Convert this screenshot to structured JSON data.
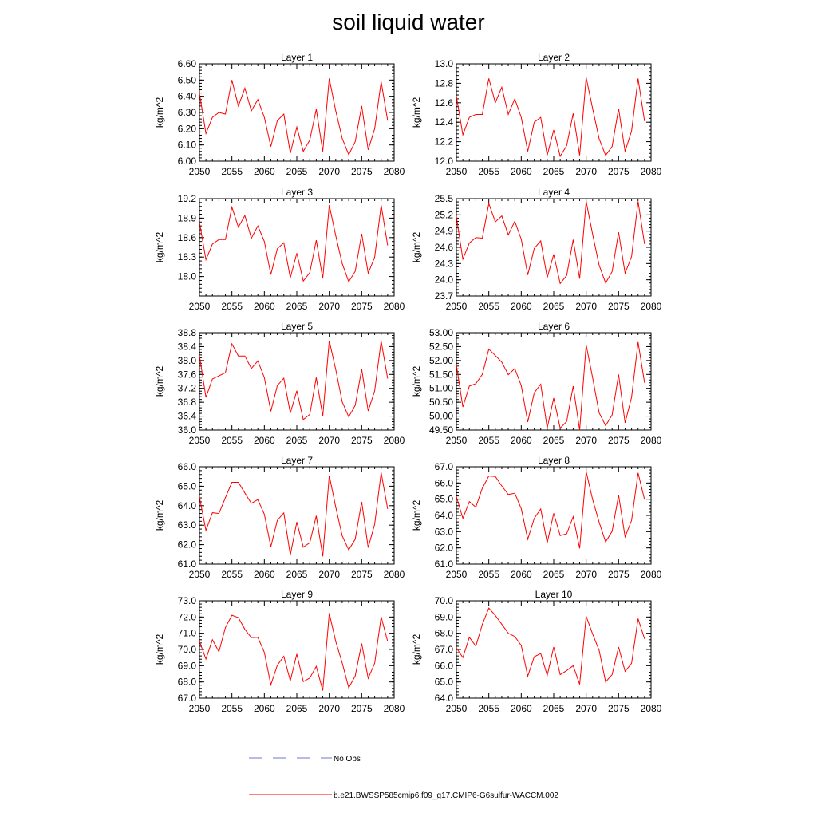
{
  "page": {
    "title": "soil liquid water"
  },
  "legend": {
    "entries": [
      {
        "label": "No Obs",
        "color": "#6f79c8",
        "style": "dashed"
      },
      {
        "label": "b.e21.BWSSP585cmip6.f09_g17.CMIP6-G6sulfur-WACCM.002",
        "color": "#ff0000",
        "style": "solid"
      }
    ]
  },
  "colors": {
    "series": "#ff0000",
    "axis": "#000000"
  },
  "chart_data": [
    {
      "type": "line",
      "title": "Layer 1",
      "xlabel": "",
      "ylabel": "kg/m^2",
      "xlim": [
        2050,
        2080
      ],
      "ylim": [
        6.0,
        6.6
      ],
      "xticks": [
        "2050",
        "2055",
        "2060",
        "2065",
        "2070",
        "2075",
        "2080"
      ],
      "yticks": [
        "6.00",
        "6.10",
        "6.20",
        "6.30",
        "6.40",
        "6.50",
        "6.60"
      ],
      "x": [
        2050,
        2051,
        2052,
        2053,
        2054,
        2055,
        2056,
        2057,
        2058,
        2059,
        2060,
        2061,
        2062,
        2063,
        2064,
        2065,
        2066,
        2067,
        2068,
        2069,
        2070,
        2071,
        2072,
        2073,
        2074,
        2075,
        2076,
        2077,
        2078,
        2079
      ],
      "series": [
        {
          "name": "b.e21.BWSSP585cmip6.f09_g17.CMIP6-G6sulfur-WACCM.002",
          "values": [
            6.42,
            6.17,
            6.27,
            6.3,
            6.29,
            6.5,
            6.34,
            6.45,
            6.31,
            6.38,
            6.27,
            6.09,
            6.25,
            6.29,
            6.05,
            6.21,
            6.06,
            6.13,
            6.32,
            6.06,
            6.51,
            6.31,
            6.14,
            6.04,
            6.12,
            6.34,
            6.07,
            6.2,
            6.49,
            6.25
          ]
        }
      ]
    },
    {
      "type": "line",
      "title": "Layer 2",
      "xlabel": "",
      "ylabel": "kg/m^2",
      "xlim": [
        2050,
        2080
      ],
      "ylim": [
        12.0,
        13.0
      ],
      "xticks": [
        "2050",
        "2055",
        "2060",
        "2065",
        "2070",
        "2075",
        "2080"
      ],
      "yticks": [
        "12.0",
        "12.2",
        "12.4",
        "12.6",
        "12.8",
        "13.0"
      ],
      "x": [
        2050,
        2051,
        2052,
        2053,
        2054,
        2055,
        2056,
        2057,
        2058,
        2059,
        2060,
        2061,
        2062,
        2063,
        2064,
        2065,
        2066,
        2067,
        2068,
        2069,
        2070,
        2071,
        2072,
        2073,
        2074,
        2075,
        2076,
        2077,
        2078,
        2079
      ],
      "series": [
        {
          "name": "b.e21.BWSSP585cmip6.f09_g17.CMIP6-G6sulfur-WACCM.002",
          "values": [
            12.67,
            12.27,
            12.45,
            12.48,
            12.48,
            12.85,
            12.6,
            12.76,
            12.48,
            12.64,
            12.45,
            12.1,
            12.4,
            12.45,
            12.06,
            12.32,
            12.05,
            12.16,
            12.49,
            12.06,
            12.86,
            12.54,
            12.23,
            12.06,
            12.15,
            12.54,
            12.1,
            12.31,
            12.85,
            12.41
          ]
        }
      ]
    },
    {
      "type": "line",
      "title": "Layer 3",
      "xlabel": "",
      "ylabel": "kg/m^2",
      "xlim": [
        2050,
        2080
      ],
      "ylim": [
        17.7,
        19.2
      ],
      "xticks": [
        "2050",
        "2055",
        "2060",
        "2065",
        "2070",
        "2075",
        "2080"
      ],
      "yticks": [
        "18.0",
        "18.3",
        "18.6",
        "18.9",
        "19.2"
      ],
      "x": [
        2050,
        2051,
        2052,
        2053,
        2054,
        2055,
        2056,
        2057,
        2058,
        2059,
        2060,
        2061,
        2062,
        2063,
        2064,
        2065,
        2066,
        2067,
        2068,
        2069,
        2070,
        2071,
        2072,
        2073,
        2074,
        2075,
        2076,
        2077,
        2078,
        2079
      ],
      "series": [
        {
          "name": "b.e21.BWSSP585cmip6.f09_g17.CMIP6-G6sulfur-WACCM.002",
          "values": [
            18.84,
            18.26,
            18.5,
            18.57,
            18.57,
            19.07,
            18.76,
            18.94,
            18.59,
            18.78,
            18.54,
            18.03,
            18.43,
            18.52,
            17.98,
            18.36,
            17.93,
            18.06,
            18.56,
            17.97,
            19.1,
            18.63,
            18.2,
            17.92,
            18.08,
            18.66,
            18.05,
            18.3,
            19.1,
            18.48
          ]
        }
      ]
    },
    {
      "type": "line",
      "title": "Layer 4",
      "xlabel": "",
      "ylabel": "kg/m^2",
      "xlim": [
        2050,
        2080
      ],
      "ylim": [
        23.7,
        25.5
      ],
      "xticks": [
        "2050",
        "2055",
        "2060",
        "2065",
        "2070",
        "2075",
        "2080"
      ],
      "yticks": [
        "23.7",
        "24.0",
        "24.3",
        "24.6",
        "24.9",
        "25.2",
        "25.5"
      ],
      "x": [
        2050,
        2051,
        2052,
        2053,
        2054,
        2055,
        2056,
        2057,
        2058,
        2059,
        2060,
        2061,
        2062,
        2063,
        2064,
        2065,
        2066,
        2067,
        2068,
        2069,
        2070,
        2071,
        2072,
        2073,
        2074,
        2075,
        2076,
        2077,
        2078,
        2079
      ],
      "series": [
        {
          "name": "b.e21.BWSSP585cmip6.f09_g17.CMIP6-G6sulfur-WACCM.002",
          "values": [
            25.17,
            24.38,
            24.68,
            24.78,
            24.77,
            25.41,
            25.07,
            25.18,
            24.83,
            25.08,
            24.75,
            24.09,
            24.58,
            24.72,
            24.04,
            24.47,
            23.93,
            24.08,
            24.74,
            24.02,
            25.45,
            24.84,
            24.27,
            23.94,
            24.15,
            24.88,
            24.12,
            24.43,
            25.45,
            24.66
          ]
        }
      ]
    },
    {
      "type": "line",
      "title": "Layer 5",
      "xlabel": "",
      "ylabel": "kg/m^2",
      "xlim": [
        2050,
        2080
      ],
      "ylim": [
        36.0,
        38.8
      ],
      "xticks": [
        "2050",
        "2055",
        "2060",
        "2065",
        "2070",
        "2075",
        "2080"
      ],
      "yticks": [
        "36.0",
        "36.4",
        "36.8",
        "37.2",
        "37.6",
        "38.0",
        "38.4",
        "38.8"
      ],
      "x": [
        2050,
        2051,
        2052,
        2053,
        2054,
        2055,
        2056,
        2057,
        2058,
        2059,
        2060,
        2061,
        2062,
        2063,
        2064,
        2065,
        2066,
        2067,
        2068,
        2069,
        2070,
        2071,
        2072,
        2073,
        2074,
        2075,
        2076,
        2077,
        2078,
        2079
      ],
      "series": [
        {
          "name": "b.e21.BWSSP585cmip6.f09_g17.CMIP6-G6sulfur-WACCM.002",
          "values": [
            38.15,
            36.94,
            37.47,
            37.56,
            37.65,
            38.48,
            38.13,
            38.13,
            37.77,
            37.99,
            37.51,
            36.54,
            37.28,
            37.49,
            36.49,
            37.13,
            36.3,
            36.45,
            37.51,
            36.4,
            38.57,
            37.74,
            36.81,
            36.38,
            36.71,
            37.75,
            36.55,
            37.13,
            38.56,
            37.48
          ]
        }
      ]
    },
    {
      "type": "line",
      "title": "Layer 6",
      "xlabel": "",
      "ylabel": "kg/m^2",
      "xlim": [
        2050,
        2080
      ],
      "ylim": [
        49.5,
        53.0
      ],
      "xticks": [
        "2050",
        "2055",
        "2060",
        "2065",
        "2070",
        "2075",
        "2080"
      ],
      "yticks": [
        "49.50",
        "50.00",
        "50.50",
        "51.00",
        "51.50",
        "52.00",
        "52.50",
        "53.00"
      ],
      "x": [
        2050,
        2051,
        2052,
        2053,
        2054,
        2055,
        2056,
        2057,
        2058,
        2059,
        2060,
        2061,
        2062,
        2063,
        2064,
        2065,
        2066,
        2067,
        2068,
        2069,
        2070,
        2071,
        2072,
        2073,
        2074,
        2075,
        2076,
        2077,
        2078,
        2079
      ],
      "series": [
        {
          "name": "b.e21.BWSSP585cmip6.f09_g17.CMIP6-G6sulfur-WACCM.002",
          "values": [
            51.85,
            50.33,
            51.08,
            51.17,
            51.5,
            52.41,
            52.18,
            51.94,
            51.49,
            51.71,
            51.1,
            49.79,
            50.84,
            51.15,
            49.57,
            50.65,
            49.57,
            49.81,
            51.08,
            49.5,
            52.56,
            51.38,
            50.12,
            49.66,
            50.04,
            51.5,
            49.76,
            50.68,
            52.66,
            51.2
          ]
        }
      ]
    },
    {
      "type": "line",
      "title": "Layer 7",
      "xlabel": "",
      "ylabel": "kg/m^2",
      "xlim": [
        2050,
        2080
      ],
      "ylim": [
        61.0,
        66.0
      ],
      "xticks": [
        "2050",
        "2055",
        "2060",
        "2065",
        "2070",
        "2075",
        "2080"
      ],
      "yticks": [
        "61.0",
        "62.0",
        "63.0",
        "64.0",
        "65.0",
        "66.0"
      ],
      "x": [
        2050,
        2051,
        2052,
        2053,
        2054,
        2055,
        2056,
        2057,
        2058,
        2059,
        2060,
        2061,
        2062,
        2063,
        2064,
        2065,
        2066,
        2067,
        2068,
        2069,
        2070,
        2071,
        2072,
        2073,
        2074,
        2075,
        2076,
        2077,
        2078,
        2079
      ],
      "series": [
        {
          "name": "b.e21.BWSSP585cmip6.f09_g17.CMIP6-G6sulfur-WACCM.002",
          "values": [
            64.45,
            62.73,
            63.64,
            63.6,
            64.41,
            65.2,
            65.2,
            64.65,
            64.12,
            64.31,
            63.56,
            61.89,
            63.25,
            63.63,
            61.47,
            63.16,
            61.87,
            62.1,
            63.48,
            61.4,
            65.55,
            63.93,
            62.45,
            61.73,
            62.28,
            64.2,
            61.85,
            63.05,
            65.7,
            63.83
          ]
        }
      ]
    },
    {
      "type": "line",
      "title": "Layer 8",
      "xlabel": "",
      "ylabel": "kg/m^2",
      "xlim": [
        2050,
        2080
      ],
      "ylim": [
        61.0,
        67.0
      ],
      "xticks": [
        "2050",
        "2055",
        "2060",
        "2065",
        "2070",
        "2075",
        "2080"
      ],
      "yticks": [
        "61.0",
        "62.0",
        "63.0",
        "64.0",
        "65.0",
        "66.0",
        "67.0"
      ],
      "x": [
        2050,
        2051,
        2052,
        2053,
        2054,
        2055,
        2056,
        2057,
        2058,
        2059,
        2060,
        2061,
        2062,
        2063,
        2064,
        2065,
        2066,
        2067,
        2068,
        2069,
        2070,
        2071,
        2072,
        2073,
        2074,
        2075,
        2076,
        2077,
        2078,
        2079
      ],
      "series": [
        {
          "name": "b.e21.BWSSP585cmip6.f09_g17.CMIP6-G6sulfur-WACCM.002",
          "values": [
            65.17,
            63.82,
            64.85,
            64.51,
            65.68,
            66.43,
            66.4,
            65.82,
            65.29,
            65.37,
            64.42,
            62.53,
            63.82,
            64.4,
            62.31,
            64.13,
            62.76,
            62.87,
            63.92,
            61.97,
            66.7,
            64.98,
            63.58,
            62.37,
            63.02,
            65.25,
            62.68,
            63.69,
            66.62,
            64.98
          ]
        }
      ]
    },
    {
      "type": "line",
      "title": "Layer 9",
      "xlabel": "",
      "ylabel": "kg/m^2",
      "xlim": [
        2050,
        2080
      ],
      "ylim": [
        67.0,
        73.0
      ],
      "xticks": [
        "2050",
        "2055",
        "2060",
        "2065",
        "2070",
        "2075",
        "2080"
      ],
      "yticks": [
        "67.0",
        "68.0",
        "69.0",
        "70.0",
        "71.0",
        "72.0",
        "73.0"
      ],
      "x": [
        2050,
        2051,
        2052,
        2053,
        2054,
        2055,
        2056,
        2057,
        2058,
        2059,
        2060,
        2061,
        2062,
        2063,
        2064,
        2065,
        2066,
        2067,
        2068,
        2069,
        2070,
        2071,
        2072,
        2073,
        2074,
        2075,
        2076,
        2077,
        2078,
        2079
      ],
      "series": [
        {
          "name": "b.e21.BWSSP585cmip6.f09_g17.CMIP6-G6sulfur-WACCM.002",
          "values": [
            70.5,
            69.41,
            70.6,
            69.86,
            71.35,
            72.11,
            71.96,
            71.24,
            70.73,
            70.75,
            69.82,
            67.82,
            69.03,
            69.58,
            68.07,
            69.72,
            68.02,
            68.24,
            68.96,
            67.47,
            72.23,
            70.49,
            69.17,
            67.64,
            68.37,
            70.37,
            68.22,
            69.15,
            72.01,
            70.5
          ]
        }
      ]
    },
    {
      "type": "line",
      "title": "Layer 10",
      "xlabel": "",
      "ylabel": "kg/m^2",
      "xlim": [
        2050,
        2080
      ],
      "ylim": [
        64.0,
        70.0
      ],
      "xticks": [
        "2050",
        "2055",
        "2060",
        "2065",
        "2070",
        "2075",
        "2080"
      ],
      "yticks": [
        "64.0",
        "65.0",
        "66.0",
        "67.0",
        "68.0",
        "69.0",
        "70.0"
      ],
      "x": [
        2050,
        2051,
        2052,
        2053,
        2054,
        2055,
        2056,
        2057,
        2058,
        2059,
        2060,
        2061,
        2062,
        2063,
        2064,
        2065,
        2066,
        2067,
        2068,
        2069,
        2070,
        2071,
        2072,
        2073,
        2074,
        2075,
        2076,
        2077,
        2078,
        2079
      ],
      "series": [
        {
          "name": "b.e21.BWSSP585cmip6.f09_g17.CMIP6-G6sulfur-WACCM.002",
          "values": [
            67.1,
            66.5,
            67.75,
            67.2,
            68.55,
            69.55,
            69.1,
            68.55,
            68.0,
            67.8,
            67.25,
            65.35,
            66.55,
            66.75,
            65.4,
            67.15,
            65.45,
            65.7,
            66.0,
            64.85,
            69.05,
            67.95,
            66.95,
            65.0,
            65.45,
            67.15,
            65.65,
            66.15,
            68.9,
            67.65
          ]
        }
      ]
    }
  ]
}
